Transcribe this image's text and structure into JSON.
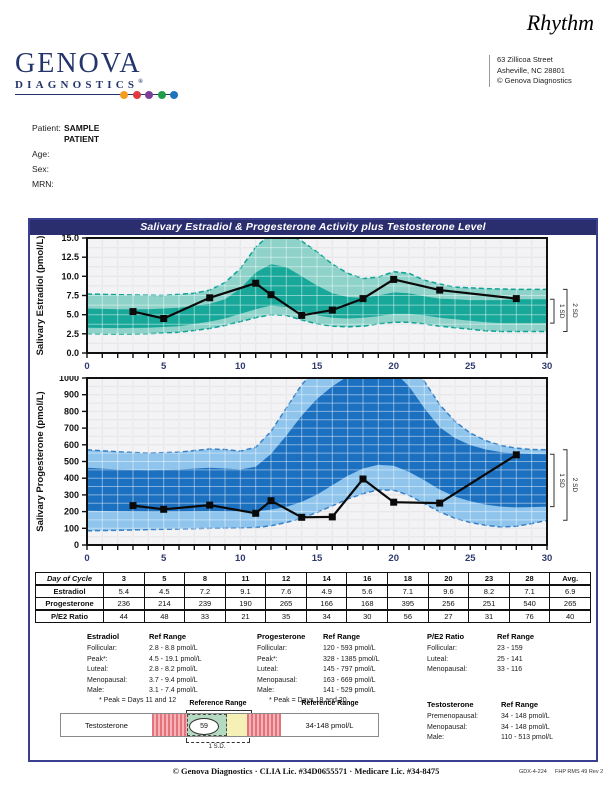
{
  "header": {
    "product": "Rhythm",
    "logo_line1": "GENOVA",
    "logo_line2": "DIAGNOSTICS",
    "logo_reg": "®",
    "logo_dots": [
      "#f59b20",
      "#e03a3e",
      "#7d3f98",
      "#209e47",
      "#1c75bc"
    ],
    "address_lines": [
      "63 Zillicoa Street",
      "Asheville, NC  28801",
      "© Genova Diagnostics"
    ]
  },
  "patient": {
    "label": "Patient:",
    "name1": "SAMPLE",
    "name2": "PATIENT",
    "rows": [
      "Age:",
      "Sex:",
      "MRN:"
    ]
  },
  "report_title": "Salivary Estradiol & Progesterone Activity plus Testosterone Level",
  "chart_data": [
    {
      "id": "estradiol",
      "type": "line",
      "ylabel": "Salivary Estradiol (pmol/L)",
      "xlabel": "",
      "ylim": [
        0,
        15
      ],
      "xlim": [
        0,
        30
      ],
      "ygrid": 1.25,
      "yticks": [
        "15.0",
        "12.5",
        "10.0",
        "7.5",
        "5.0",
        "2.5",
        "0.0"
      ],
      "xticks": [
        "0",
        "5",
        "10",
        "15",
        "20",
        "25",
        "30"
      ],
      "x": [
        3,
        5,
        8,
        11,
        12,
        14,
        16,
        18,
        20,
        23,
        28
      ],
      "values": [
        5.4,
        4.5,
        7.2,
        9.1,
        7.6,
        4.9,
        5.6,
        7.1,
        9.6,
        8.2,
        7.1
      ],
      "bands": {
        "outer_upper": [
          [
            0,
            7.7
          ],
          [
            2,
            7.6
          ],
          [
            5,
            7.5
          ],
          [
            7,
            7.8
          ],
          [
            8,
            8.2
          ],
          [
            9,
            9.2
          ],
          [
            10,
            11.0
          ],
          [
            11,
            13.8
          ],
          [
            12,
            15.6
          ],
          [
            13,
            15.6
          ],
          [
            14,
            14.6
          ],
          [
            15,
            13.2
          ],
          [
            16,
            11.6
          ],
          [
            17,
            10.4
          ],
          [
            18,
            9.7
          ],
          [
            19,
            9.9
          ],
          [
            20,
            10.6
          ],
          [
            21,
            10.4
          ],
          [
            22,
            9.5
          ],
          [
            23,
            9.0
          ],
          [
            24,
            8.6
          ],
          [
            26,
            8.4
          ],
          [
            28,
            8.3
          ],
          [
            30,
            8.3
          ]
        ],
        "outer_lower": [
          [
            0,
            2.5
          ],
          [
            2,
            2.45
          ],
          [
            4,
            2.5
          ],
          [
            6,
            2.7
          ],
          [
            8,
            3.2
          ],
          [
            9,
            3.6
          ],
          [
            10,
            4.1
          ],
          [
            11,
            4.6
          ],
          [
            12,
            5.0
          ],
          [
            13,
            4.9
          ],
          [
            14,
            4.3
          ],
          [
            15,
            3.8
          ],
          [
            16,
            3.5
          ],
          [
            17,
            3.4
          ],
          [
            18,
            3.5
          ],
          [
            19,
            3.8
          ],
          [
            20,
            4.0
          ],
          [
            21,
            4.0
          ],
          [
            22,
            3.8
          ],
          [
            23,
            3.5
          ],
          [
            24,
            3.3
          ],
          [
            25,
            3.1
          ],
          [
            26,
            2.9
          ],
          [
            27,
            2.8
          ],
          [
            28,
            2.8
          ],
          [
            30,
            2.8
          ]
        ],
        "inner_upper": [
          [
            0,
            5.8
          ],
          [
            2,
            5.7
          ],
          [
            4,
            5.7
          ],
          [
            6,
            5.9
          ],
          [
            8,
            6.4
          ],
          [
            9,
            7.0
          ],
          [
            10,
            8.4
          ],
          [
            11,
            10.5
          ],
          [
            12,
            11.6
          ],
          [
            13,
            11.2
          ],
          [
            14,
            10.0
          ],
          [
            15,
            8.8
          ],
          [
            16,
            7.8
          ],
          [
            17,
            7.3
          ],
          [
            18,
            7.2
          ],
          [
            19,
            7.5
          ],
          [
            20,
            7.9
          ],
          [
            21,
            7.8
          ],
          [
            22,
            7.4
          ],
          [
            23,
            7.1
          ],
          [
            24,
            7.0
          ],
          [
            25,
            6.9
          ],
          [
            27,
            6.9
          ],
          [
            28,
            7.0
          ],
          [
            30,
            7.0
          ]
        ],
        "inner_lower": [
          [
            0,
            3.3
          ],
          [
            2,
            3.25
          ],
          [
            4,
            3.3
          ],
          [
            6,
            3.5
          ],
          [
            8,
            4.1
          ],
          [
            9,
            4.5
          ],
          [
            10,
            5.1
          ],
          [
            11,
            5.7
          ],
          [
            12,
            6.2
          ],
          [
            13,
            6.0
          ],
          [
            14,
            5.4
          ],
          [
            15,
            4.9
          ],
          [
            16,
            4.6
          ],
          [
            17,
            4.5
          ],
          [
            18,
            4.6
          ],
          [
            19,
            4.8
          ],
          [
            20,
            5.1
          ],
          [
            21,
            5.1
          ],
          [
            22,
            4.9
          ],
          [
            23,
            4.6
          ],
          [
            24,
            4.4
          ],
          [
            25,
            4.2
          ],
          [
            26,
            4.0
          ],
          [
            27,
            3.9
          ],
          [
            28,
            3.9
          ],
          [
            30,
            3.9
          ]
        ]
      },
      "sd_brackets": [
        {
          "label": "1 SD",
          "from": 3.9,
          "to": 7.0
        },
        {
          "label": "2 SD",
          "from": 2.8,
          "to": 8.3
        }
      ],
      "colors": {
        "band_outer": "#8fd2c9",
        "band_inner": "#18a89a",
        "edge": "#0da294"
      }
    },
    {
      "id": "progesterone",
      "type": "line",
      "ylabel": "Salivary Progesterone (pmol/L)",
      "xlabel": "",
      "ylim": [
        0,
        1000
      ],
      "xlim": [
        0,
        30
      ],
      "ygrid": 50,
      "yticks": [
        "1000",
        "900",
        "800",
        "700",
        "600",
        "500",
        "400",
        "300",
        "200",
        "100",
        "0"
      ],
      "xticks": [
        "0",
        "5",
        "10",
        "15",
        "20",
        "25",
        "30"
      ],
      "x": [
        3,
        5,
        8,
        11,
        12,
        14,
        16,
        18,
        20,
        23,
        28
      ],
      "values": [
        236,
        214,
        239,
        190,
        265,
        166,
        168,
        395,
        256,
        251,
        540
      ],
      "bands": {
        "outer_upper": [
          [
            0,
            570
          ],
          [
            2,
            558
          ],
          [
            4,
            550
          ],
          [
            6,
            556
          ],
          [
            8,
            575
          ],
          [
            9,
            572
          ],
          [
            10,
            562
          ],
          [
            11,
            585
          ],
          [
            12,
            680
          ],
          [
            13,
            820
          ],
          [
            14,
            960
          ],
          [
            15,
            1060
          ],
          [
            16,
            1120
          ],
          [
            17,
            1150
          ],
          [
            18,
            1160
          ],
          [
            19,
            1160
          ],
          [
            20,
            1150
          ],
          [
            21,
            1090
          ],
          [
            22,
            980
          ],
          [
            23,
            840
          ],
          [
            24,
            740
          ],
          [
            25,
            670
          ],
          [
            26,
            625
          ],
          [
            27,
            595
          ],
          [
            28,
            580
          ],
          [
            29,
            572
          ],
          [
            30,
            570
          ]
        ],
        "outer_lower": [
          [
            0,
            85
          ],
          [
            2,
            88
          ],
          [
            4,
            92
          ],
          [
            6,
            96
          ],
          [
            8,
            100
          ],
          [
            10,
            102
          ],
          [
            11,
            105
          ],
          [
            12,
            115
          ],
          [
            13,
            135
          ],
          [
            14,
            160
          ],
          [
            15,
            195
          ],
          [
            16,
            235
          ],
          [
            17,
            275
          ],
          [
            18,
            308
          ],
          [
            19,
            330
          ],
          [
            20,
            328
          ],
          [
            21,
            298
          ],
          [
            22,
            248
          ],
          [
            23,
            198
          ],
          [
            24,
            160
          ],
          [
            25,
            135
          ],
          [
            26,
            118
          ],
          [
            27,
            108
          ],
          [
            28,
            112
          ],
          [
            29,
            128
          ],
          [
            30,
            148
          ]
        ],
        "inner_upper": [
          [
            0,
            462
          ],
          [
            2,
            452
          ],
          [
            4,
            448
          ],
          [
            6,
            452
          ],
          [
            8,
            462
          ],
          [
            9,
            458
          ],
          [
            10,
            452
          ],
          [
            11,
            468
          ],
          [
            12,
            545
          ],
          [
            13,
            655
          ],
          [
            14,
            775
          ],
          [
            15,
            875
          ],
          [
            16,
            950
          ],
          [
            17,
            1010
          ],
          [
            18,
            1060
          ],
          [
            19,
            1070
          ],
          [
            20,
            1040
          ],
          [
            21,
            950
          ],
          [
            22,
            820
          ],
          [
            23,
            705
          ],
          [
            24,
            640
          ],
          [
            25,
            598
          ],
          [
            26,
            572
          ],
          [
            27,
            556
          ],
          [
            28,
            548
          ],
          [
            29,
            545
          ],
          [
            30,
            543
          ]
        ],
        "inner_lower": [
          [
            0,
            205
          ],
          [
            2,
            202
          ],
          [
            4,
            200
          ],
          [
            6,
            200
          ],
          [
            8,
            202
          ],
          [
            10,
            200
          ],
          [
            11,
            202
          ],
          [
            12,
            212
          ],
          [
            13,
            228
          ],
          [
            14,
            258
          ],
          [
            15,
            302
          ],
          [
            16,
            358
          ],
          [
            17,
            415
          ],
          [
            18,
            458
          ],
          [
            19,
            480
          ],
          [
            20,
            474
          ],
          [
            21,
            438
          ],
          [
            22,
            388
          ],
          [
            23,
            332
          ],
          [
            24,
            290
          ],
          [
            25,
            262
          ],
          [
            26,
            242
          ],
          [
            27,
            230
          ],
          [
            28,
            225
          ],
          [
            29,
            227
          ],
          [
            30,
            230
          ]
        ]
      },
      "sd_brackets": [
        {
          "label": "1 SD",
          "from": 230,
          "to": 543
        },
        {
          "label": "2 SD",
          "from": 148,
          "to": 570
        }
      ],
      "colors": {
        "band_outer": "#8fc4ec",
        "band_inner": "#1c70c0",
        "edge": "#3781c6"
      }
    }
  ],
  "table": {
    "header": [
      "Day of Cycle",
      "3",
      "5",
      "8",
      "11",
      "12",
      "14",
      "16",
      "18",
      "20",
      "23",
      "28",
      "Avg."
    ],
    "rows": [
      {
        "label": "Estradiol",
        "values": [
          "5.4",
          "4.5",
          "7.2",
          "9.1",
          "7.6",
          "4.9",
          "5.6",
          "7.1",
          "9.6",
          "8.2",
          "7.1",
          "6.9"
        ]
      },
      {
        "label": "Progesterone",
        "values": [
          "236",
          "214",
          "239",
          "190",
          "265",
          "166",
          "168",
          "395",
          "256",
          "251",
          "540",
          "265"
        ]
      },
      {
        "label": "P/E2 Ratio",
        "values": [
          "44",
          "48",
          "33",
          "21",
          "35",
          "34",
          "30",
          "56",
          "27",
          "31",
          "76",
          "40"
        ]
      }
    ]
  },
  "ref_ranges": [
    {
      "title": "Estradiol",
      "subtitle": "Ref Range",
      "rows": [
        [
          "Follicular:",
          "2.8 - 8.8 pmol/L"
        ],
        [
          "Peak*:",
          "4.5 - 19.1 pmol/L"
        ],
        [
          "Luteal:",
          "2.8 - 8.2 pmol/L"
        ],
        [
          "Menopausal:",
          "3.7 - 9.4 pmol/L"
        ],
        [
          "Male:",
          "3.1 - 7.4 pmol/L"
        ]
      ],
      "footnote": "* Peak = Days 11 and 12"
    },
    {
      "title": "Progesterone",
      "subtitle": "Ref Range",
      "rows": [
        [
          "Follicular:",
          "120 - 593 pmol/L"
        ],
        [
          "Peak*:",
          "328 - 1385 pmol/L"
        ],
        [
          "Luteal:",
          "145 - 797 pmol/L"
        ],
        [
          "Menopausal:",
          "163 - 669 pmol/L"
        ],
        [
          "Male:",
          "141 - 529 pmol/L"
        ]
      ],
      "footnote": "* Peak = Days 18 and 20"
    },
    {
      "title": "P/E2 Ratio",
      "subtitle": "Ref Range",
      "rows": [
        [
          "Follicular:",
          "23 - 159"
        ],
        [
          "Luteal:",
          "25 - 141"
        ],
        [
          "Menopausal:",
          "33 - 116"
        ]
      ],
      "footnote": ""
    },
    {
      "title": "Testosterone",
      "subtitle": "Ref Range",
      "rows": [
        [
          "Premenopausal:",
          "34 - 148 pmol/L"
        ],
        [
          "Menopausal:",
          "34 - 148 pmol/L"
        ],
        [
          "Male:",
          "110 - 513 pmol/L"
        ]
      ],
      "footnote": ""
    }
  ],
  "testosterone_bar": {
    "label": "Testosterone",
    "value": "59",
    "ref_top_label": "Reference Range",
    "right_label": "Reference Range",
    "right_value": "34-148 pmol/L",
    "sd_label": "1 S.D."
  },
  "footer": {
    "center": "© Genova Diagnostics · CLIA Lic. #34D0655571 · Medicare Lic. #34-8475",
    "code1": "GDX-4-224",
    "code2": "FHP RMS 49 Rev 2"
  }
}
